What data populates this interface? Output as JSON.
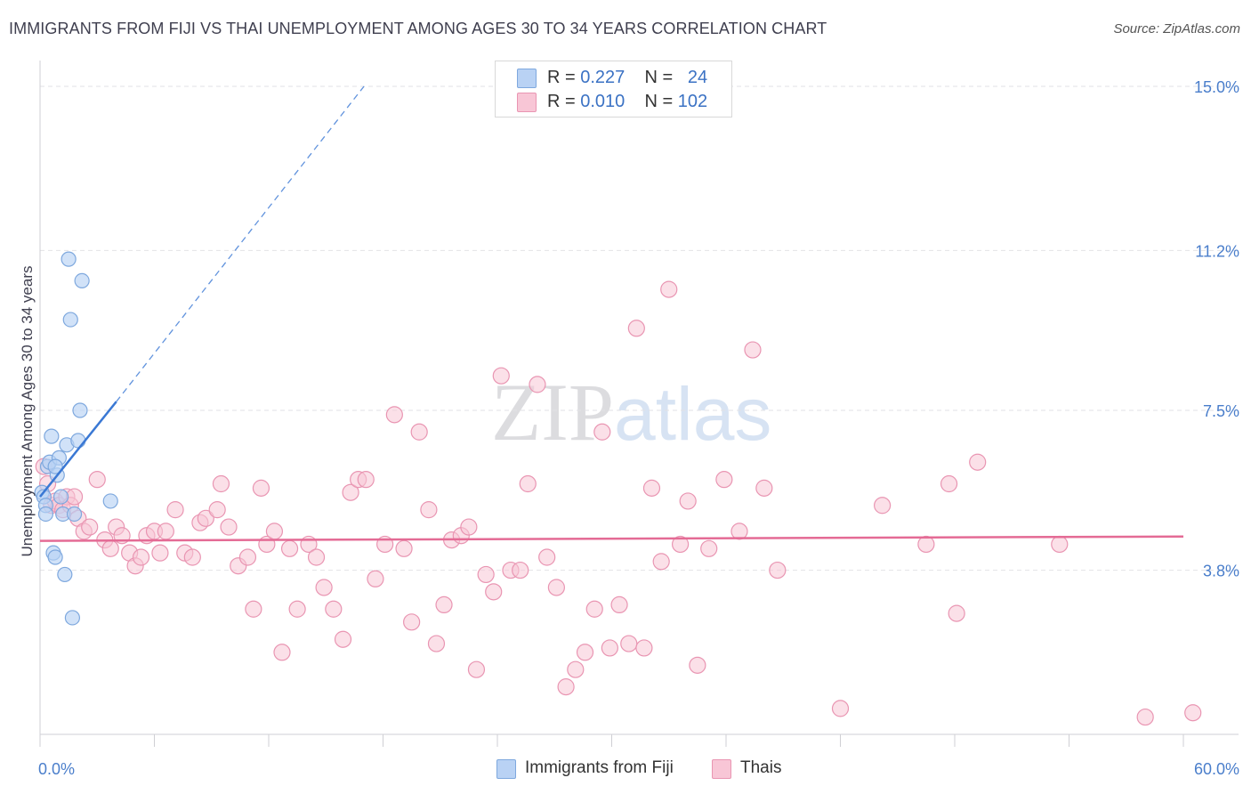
{
  "title": "IMMIGRANTS FROM FIJI VS THAI UNEMPLOYMENT AMONG AGES 30 TO 34 YEARS CORRELATION CHART",
  "source": "Source: ZipAtlas.com",
  "watermark": {
    "zip": "ZIP",
    "atlas": "atlas"
  },
  "legend": {
    "r_label": "R =",
    "n_label": "N =",
    "fiji": {
      "r": "0.227",
      "n": "24"
    },
    "thai": {
      "r": "0.010",
      "n": "102"
    }
  },
  "colors": {
    "fiji_fill": "#b9d2f4",
    "fiji_stroke": "#7ea8de",
    "fiji_line": "#3a78d4",
    "thai_fill": "#f8c6d6",
    "thai_stroke": "#e995b2",
    "thai_line": "#e46b95",
    "axis_text": "#4a7ecb"
  },
  "chart_data": {
    "type": "scatter",
    "title": "IMMIGRANTS FROM FIJI VS THAI UNEMPLOYMENT AMONG AGES 30 TO 34 YEARS CORRELATION CHART",
    "xlabel": "",
    "ylabel": "Unemployment Among Ages 30 to 34 years",
    "xlim": [
      0,
      60
    ],
    "ylim": [
      0,
      15.5
    ],
    "x_tick_labels": [
      "0.0%",
      "60.0%"
    ],
    "y_ticks": [
      3.8,
      7.5,
      11.2,
      15.0
    ],
    "y_tick_labels": [
      "3.8%",
      "7.5%",
      "11.2%",
      "15.0%"
    ],
    "legend_entries": [
      "Immigrants from Fiji",
      "Thais"
    ],
    "series": [
      {
        "name": "Immigrants from Fiji",
        "points": [
          [
            0.1,
            5.6
          ],
          [
            0.2,
            5.5
          ],
          [
            0.3,
            5.3
          ],
          [
            0.3,
            5.1
          ],
          [
            0.4,
            6.2
          ],
          [
            0.5,
            6.3
          ],
          [
            0.6,
            6.9
          ],
          [
            0.7,
            4.2
          ],
          [
            0.8,
            4.1
          ],
          [
            0.9,
            6.0
          ],
          [
            1.0,
            6.4
          ],
          [
            1.1,
            5.5
          ],
          [
            1.2,
            5.1
          ],
          [
            1.3,
            3.7
          ],
          [
            1.4,
            6.7
          ],
          [
            1.5,
            11.0
          ],
          [
            1.6,
            9.6
          ],
          [
            1.7,
            2.7
          ],
          [
            1.8,
            5.1
          ],
          [
            2.0,
            6.8
          ],
          [
            2.1,
            7.5
          ],
          [
            2.2,
            10.5
          ],
          [
            3.7,
            5.4
          ],
          [
            0.8,
            6.2
          ]
        ],
        "trend": {
          "x": [
            0.0,
            4.0
          ],
          "y": [
            5.5,
            7.7
          ]
        },
        "trend_dashed": {
          "x": [
            4.0,
            17.0
          ],
          "y": [
            7.7,
            15.0
          ]
        }
      },
      {
        "name": "Thais",
        "points": [
          [
            0.2,
            6.2
          ],
          [
            0.4,
            5.8
          ],
          [
            0.6,
            5.3
          ],
          [
            0.8,
            5.4
          ],
          [
            1.0,
            5.3
          ],
          [
            1.2,
            5.2
          ],
          [
            1.4,
            5.5
          ],
          [
            1.6,
            5.3
          ],
          [
            1.8,
            5.5
          ],
          [
            2.0,
            5.0
          ],
          [
            2.3,
            4.7
          ],
          [
            2.6,
            4.8
          ],
          [
            3.0,
            5.9
          ],
          [
            3.4,
            4.5
          ],
          [
            3.7,
            4.3
          ],
          [
            4.0,
            4.8
          ],
          [
            4.3,
            4.6
          ],
          [
            4.7,
            4.2
          ],
          [
            5.0,
            3.9
          ],
          [
            5.3,
            4.1
          ],
          [
            5.6,
            4.6
          ],
          [
            6.0,
            4.7
          ],
          [
            6.3,
            4.2
          ],
          [
            6.6,
            4.7
          ],
          [
            7.1,
            5.2
          ],
          [
            7.6,
            4.2
          ],
          [
            8.0,
            4.1
          ],
          [
            8.4,
            4.9
          ],
          [
            8.7,
            5.0
          ],
          [
            9.3,
            5.2
          ],
          [
            9.5,
            5.8
          ],
          [
            9.9,
            4.8
          ],
          [
            10.4,
            3.9
          ],
          [
            10.9,
            4.1
          ],
          [
            11.2,
            2.9
          ],
          [
            11.6,
            5.7
          ],
          [
            11.9,
            4.4
          ],
          [
            12.3,
            4.7
          ],
          [
            12.7,
            1.9
          ],
          [
            13.1,
            4.3
          ],
          [
            13.5,
            2.9
          ],
          [
            14.1,
            4.4
          ],
          [
            14.5,
            4.1
          ],
          [
            14.9,
            3.4
          ],
          [
            15.4,
            2.9
          ],
          [
            15.9,
            2.2
          ],
          [
            16.3,
            5.6
          ],
          [
            16.7,
            5.9
          ],
          [
            17.1,
            5.9
          ],
          [
            17.6,
            3.6
          ],
          [
            18.1,
            4.4
          ],
          [
            18.6,
            7.4
          ],
          [
            19.1,
            4.3
          ],
          [
            19.5,
            2.6
          ],
          [
            19.9,
            7.0
          ],
          [
            20.4,
            5.2
          ],
          [
            20.8,
            2.1
          ],
          [
            21.2,
            3.0
          ],
          [
            21.6,
            4.5
          ],
          [
            22.1,
            4.6
          ],
          [
            22.5,
            4.8
          ],
          [
            22.9,
            1.5
          ],
          [
            23.4,
            3.7
          ],
          [
            23.8,
            3.3
          ],
          [
            24.2,
            8.3
          ],
          [
            24.7,
            3.8
          ],
          [
            25.2,
            3.8
          ],
          [
            25.6,
            5.8
          ],
          [
            26.1,
            8.1
          ],
          [
            26.6,
            4.1
          ],
          [
            27.1,
            3.4
          ],
          [
            27.6,
            1.1
          ],
          [
            28.1,
            1.5
          ],
          [
            28.6,
            1.9
          ],
          [
            29.1,
            2.9
          ],
          [
            29.5,
            7.0
          ],
          [
            29.9,
            2.0
          ],
          [
            30.4,
            3.0
          ],
          [
            30.9,
            2.1
          ],
          [
            31.3,
            9.4
          ],
          [
            31.7,
            2.0
          ],
          [
            32.1,
            5.7
          ],
          [
            32.6,
            4.0
          ],
          [
            33.0,
            10.3
          ],
          [
            33.6,
            4.4
          ],
          [
            34.0,
            5.4
          ],
          [
            34.5,
            1.6
          ],
          [
            35.1,
            4.3
          ],
          [
            35.9,
            5.9
          ],
          [
            36.7,
            4.7
          ],
          [
            37.4,
            8.9
          ],
          [
            38.0,
            5.7
          ],
          [
            38.7,
            3.8
          ],
          [
            42.0,
            0.6
          ],
          [
            44.2,
            5.3
          ],
          [
            46.5,
            4.4
          ],
          [
            47.7,
            5.8
          ],
          [
            48.1,
            2.8
          ],
          [
            49.2,
            6.3
          ],
          [
            53.5,
            4.4
          ],
          [
            58.0,
            0.4
          ],
          [
            60.5,
            0.5
          ]
        ],
        "trend": {
          "x": [
            0.0,
            60.0
          ],
          "y": [
            4.48,
            4.58
          ]
        }
      }
    ]
  }
}
